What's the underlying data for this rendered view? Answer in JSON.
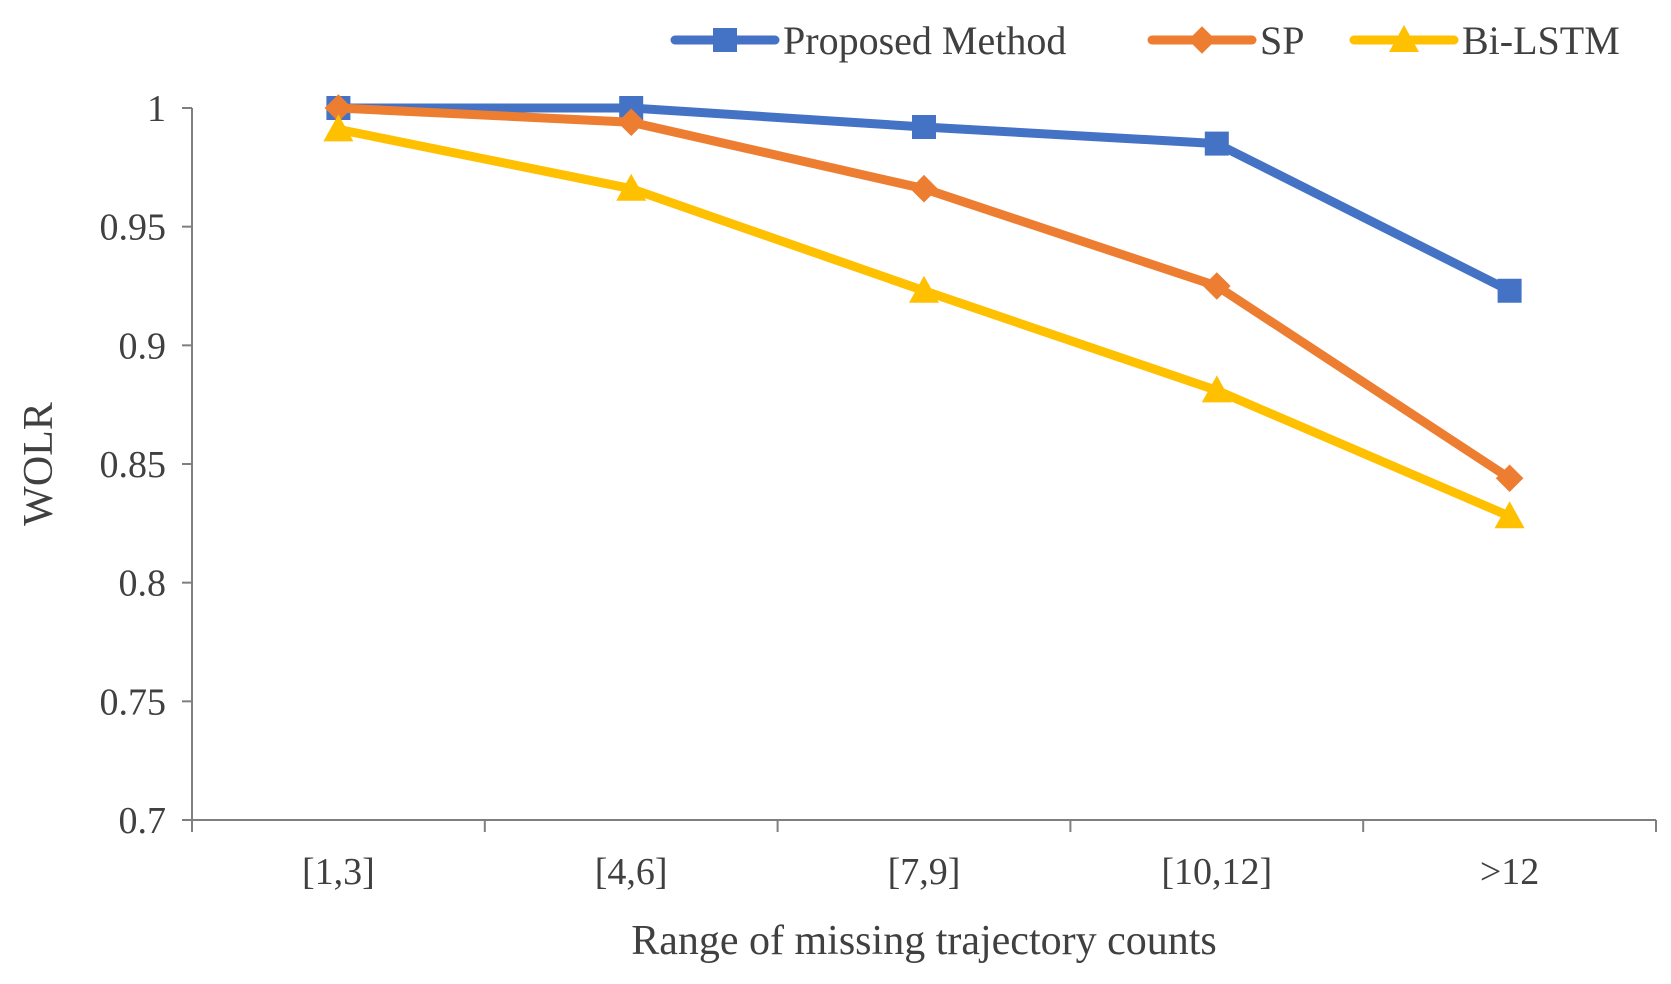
{
  "chart_data": {
    "type": "line",
    "title": "",
    "xlabel": "Range of missing trajectory counts",
    "ylabel": "WOLR",
    "categories": [
      "[1,3]",
      "[4,6]",
      "[7,9]",
      "[10,12]",
      ">12"
    ],
    "ylim": [
      0.7,
      1
    ],
    "yticks": [
      0.7,
      0.75,
      0.8,
      0.85,
      0.9,
      0.95,
      1
    ],
    "ytick_labels": [
      "0.7",
      "0.75",
      "0.8",
      "0.85",
      "0.9",
      "0.95",
      "1"
    ],
    "grid": false,
    "legend_position": "top-right",
    "series": [
      {
        "name": "Proposed Method",
        "color": "#4472C4",
        "marker": "square",
        "values": [
          1.0,
          1.0,
          0.992,
          0.985,
          0.923
        ]
      },
      {
        "name": "SP",
        "color": "#ED7D31",
        "marker": "diamond",
        "values": [
          1.0,
          0.994,
          0.966,
          0.925,
          0.844
        ]
      },
      {
        "name": "Bi-LSTM",
        "color": "#FFC000",
        "marker": "triangle",
        "values": [
          0.991,
          0.966,
          0.923,
          0.881,
          0.828
        ]
      }
    ]
  }
}
